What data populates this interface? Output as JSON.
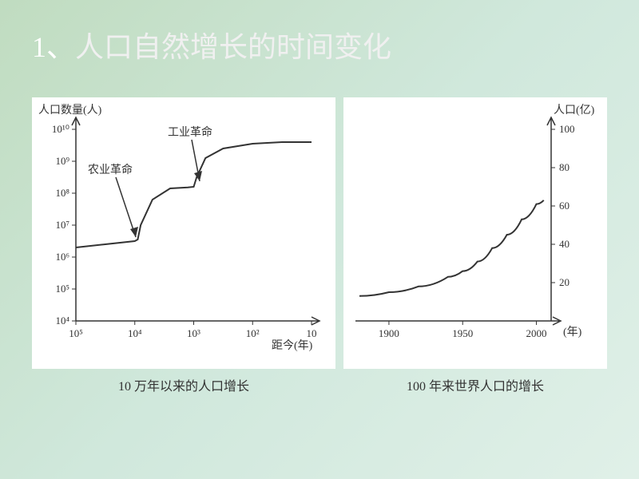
{
  "slide": {
    "title_prefix": "1、",
    "title_text": "人口自然增长的时间变化"
  },
  "left_chart": {
    "type": "line",
    "y_axis_label": "人口数量(人)",
    "x_axis_label": "距今(年)",
    "caption": "10 万年以来的人口增长",
    "y_ticks": [
      "10⁴",
      "10⁵",
      "10⁶",
      "10⁷",
      "10⁸",
      "10⁹",
      "10¹⁰"
    ],
    "x_ticks": [
      "10⁵",
      "10⁴",
      "10³",
      "10²",
      "10"
    ],
    "annotations": {
      "a1": "农业革命",
      "a2": "工业革命"
    },
    "line_color": "#333333",
    "axis_color": "#333333",
    "background_color": "#ffffff",
    "label_fontsize": 14,
    "tick_fontsize": 13,
    "caption_fontsize": 16,
    "data_points": [
      {
        "x": 0,
        "y": 2.3
      },
      {
        "x": 0.5,
        "y": 2.4
      },
      {
        "x": 1.0,
        "y": 2.5
      },
      {
        "x": 1.05,
        "y": 2.55
      },
      {
        "x": 1.1,
        "y": 3.0
      },
      {
        "x": 1.3,
        "y": 3.8
      },
      {
        "x": 1.6,
        "y": 4.15
      },
      {
        "x": 1.9,
        "y": 4.18
      },
      {
        "x": 2.0,
        "y": 4.2
      },
      {
        "x": 2.05,
        "y": 4.5
      },
      {
        "x": 2.2,
        "y": 5.1
      },
      {
        "x": 2.5,
        "y": 5.4
      },
      {
        "x": 3.0,
        "y": 5.55
      },
      {
        "x": 3.5,
        "y": 5.6
      },
      {
        "x": 4.0,
        "y": 5.6
      }
    ]
  },
  "right_chart": {
    "type": "line",
    "y_axis_label": "人口(亿)",
    "x_axis_label": "(年)",
    "caption": "100 年来世界人口的增长",
    "y_ticks": [
      "20",
      "40",
      "60",
      "80",
      "100"
    ],
    "x_ticks": [
      "1900",
      "1950",
      "2000"
    ],
    "line_color": "#333333",
    "axis_color": "#333333",
    "background_color": "#ffffff",
    "label_fontsize": 14,
    "tick_fontsize": 13,
    "caption_fontsize": 16,
    "ylim": [
      0,
      100
    ],
    "data_points": [
      {
        "x": 1880,
        "y": 13
      },
      {
        "x": 1900,
        "y": 15
      },
      {
        "x": 1920,
        "y": 18
      },
      {
        "x": 1940,
        "y": 23
      },
      {
        "x": 1950,
        "y": 26
      },
      {
        "x": 1960,
        "y": 31
      },
      {
        "x": 1970,
        "y": 38
      },
      {
        "x": 1980,
        "y": 45
      },
      {
        "x": 1990,
        "y": 53
      },
      {
        "x": 2000,
        "y": 61
      },
      {
        "x": 2005,
        "y": 63
      }
    ]
  }
}
